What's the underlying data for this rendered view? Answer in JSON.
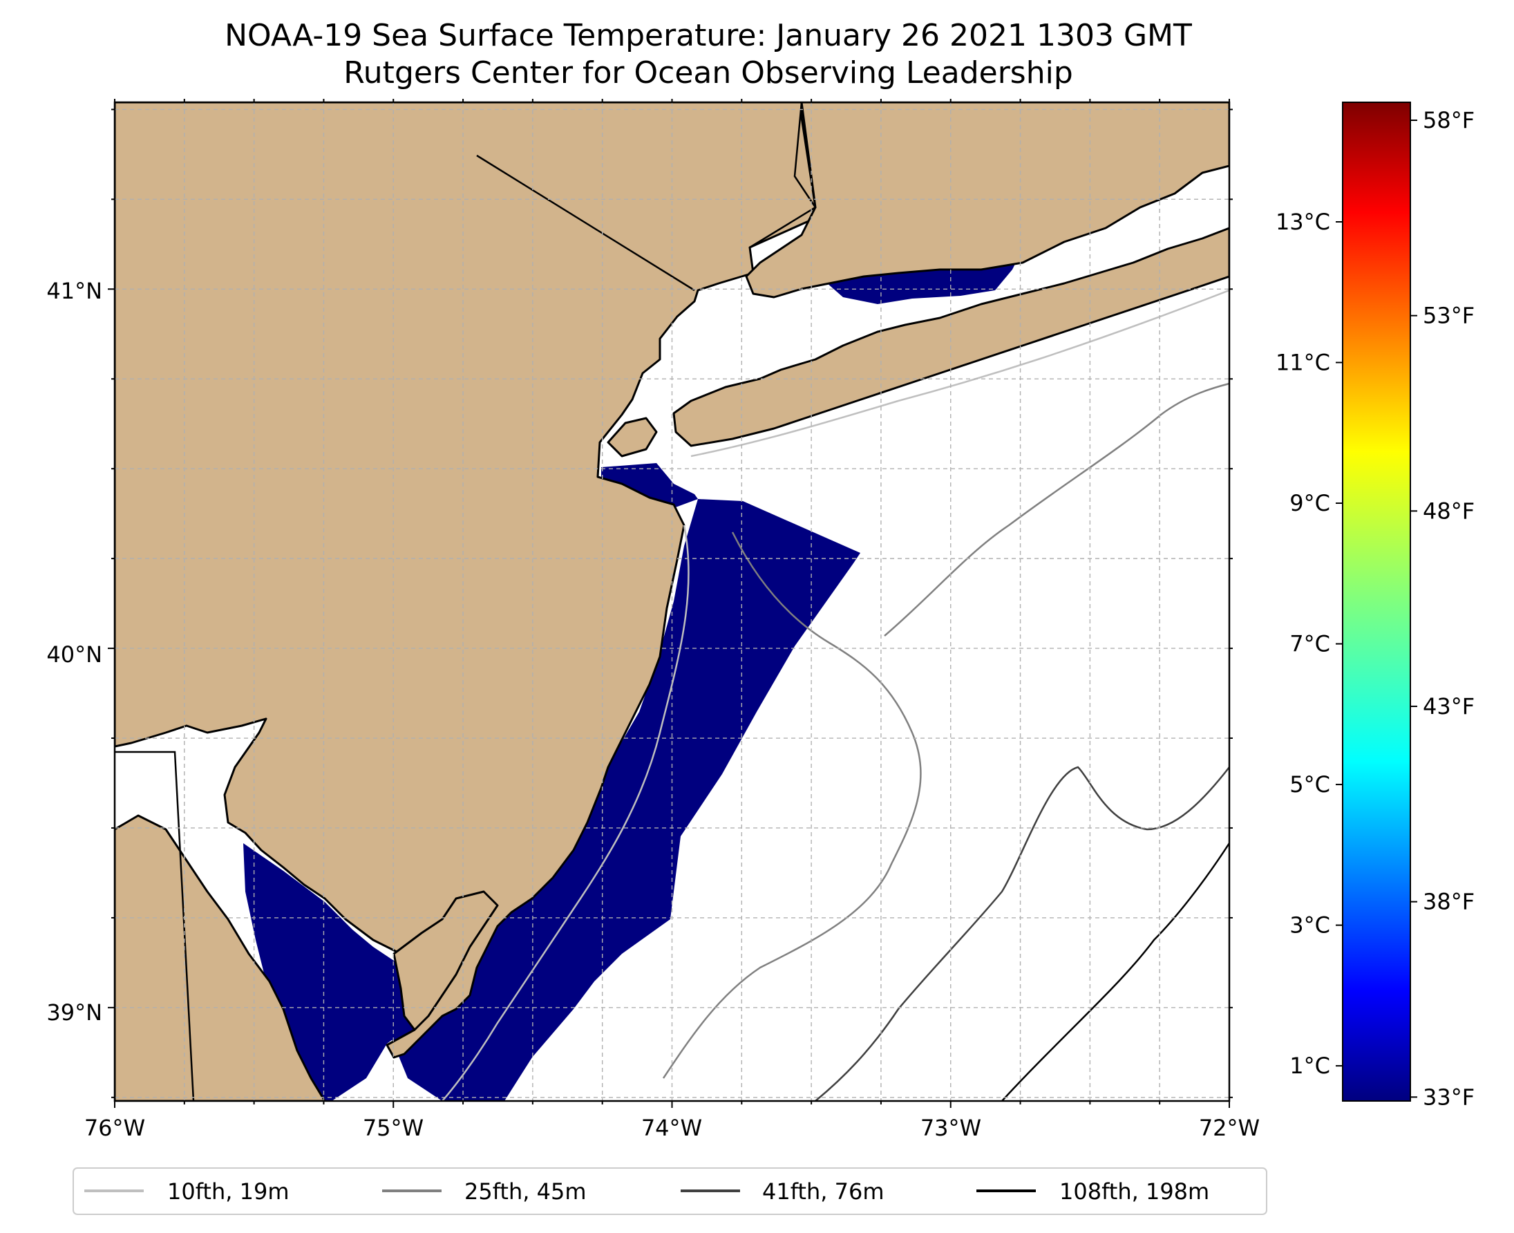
{
  "title": {
    "line1": "NOAA-19 Sea Surface Temperature: January 26 2021 1303 GMT",
    "line2": "Rutgers Center for Ocean Observing Leadership"
  },
  "map": {
    "lon_range": [
      -76,
      -72
    ],
    "lat_range": [
      38.74,
      41.52
    ],
    "lon_ticks": [
      {
        "value": -76,
        "label": "76°W"
      },
      {
        "value": -75,
        "label": "75°W"
      },
      {
        "value": -74,
        "label": "74°W"
      },
      {
        "value": -73,
        "label": "73°W"
      },
      {
        "value": -72,
        "label": "72°W"
      }
    ],
    "lat_ticks": [
      {
        "value": 41,
        "label": "41°N"
      },
      {
        "value": 40,
        "label": "40°N"
      },
      {
        "value": 39,
        "label": "39°N"
      }
    ],
    "land_color": "#d2b48c",
    "sst_color": "#00007f"
  },
  "colorbar": {
    "colormap": "jet",
    "celsius_range": [
      0.5,
      14.7
    ],
    "celsius_ticks": [
      {
        "value": 1,
        "label": "1°C"
      },
      {
        "value": 3,
        "label": "3°C"
      },
      {
        "value": 5,
        "label": "5°C"
      },
      {
        "value": 7,
        "label": "7°C"
      },
      {
        "value": 9,
        "label": "9°C"
      },
      {
        "value": 11,
        "label": "11°C"
      },
      {
        "value": 13,
        "label": "13°C"
      }
    ],
    "fahrenheit_ticks": [
      {
        "value": 33,
        "label": "33°F"
      },
      {
        "value": 38,
        "label": "38°F"
      },
      {
        "value": 43,
        "label": "43°F"
      },
      {
        "value": 48,
        "label": "48°F"
      },
      {
        "value": 53,
        "label": "53°F"
      },
      {
        "value": 58,
        "label": "58°F"
      }
    ]
  },
  "legend": {
    "items": [
      {
        "label": "10fth, 19m",
        "color": "#bfbfbf"
      },
      {
        "label": "25fth, 45m",
        "color": "#808080"
      },
      {
        "label": "41fth, 76m",
        "color": "#404040"
      },
      {
        "label": "108fth, 198m",
        "color": "#000000"
      }
    ]
  }
}
